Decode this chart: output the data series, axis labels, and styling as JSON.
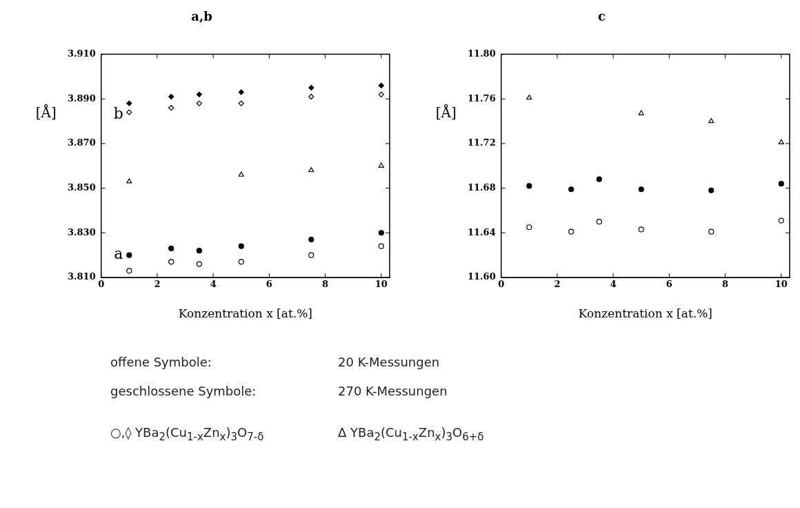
{
  "chart_data": [
    {
      "type": "scatter",
      "title": "a,b",
      "xlabel": "Konzentration x [at.%]",
      "ylabel": "[Å]",
      "x": [
        1,
        2.5,
        3.5,
        5,
        7.5,
        10
      ],
      "series": [
        {
          "color": "#000000",
          "marker": "diamond",
          "values": [
            3.888,
            3.891,
            3.892,
            3.893,
            3.895,
            3.896
          ]
        },
        {
          "color": "#ffffff",
          "marker": "diamond",
          "values": [
            3.884,
            3.886,
            3.888,
            3.888,
            3.891,
            3.892
          ]
        },
        {
          "color": "#ffffff",
          "marker": "triangle",
          "x": [
            1,
            5,
            7.5,
            10
          ],
          "values": [
            3.853,
            3.856,
            3.858,
            3.86
          ]
        },
        {
          "color": "#000000",
          "marker": "circle",
          "values": [
            3.82,
            3.823,
            3.822,
            3.824,
            3.827,
            3.83
          ]
        },
        {
          "color": "#ffffff",
          "marker": "circle",
          "values": [
            3.813,
            3.817,
            3.816,
            3.817,
            3.82,
            3.824
          ]
        }
      ],
      "xlim": [
        0,
        10.3
      ],
      "xticks": [
        0,
        2,
        4,
        6,
        8,
        10
      ],
      "ylim": [
        3.81,
        3.91
      ],
      "yticks": [
        {
          "value": 3.81,
          "label": "3.810"
        },
        {
          "value": 3.83,
          "label": "3.830"
        },
        {
          "value": 3.85,
          "label": "3.850"
        },
        {
          "value": 3.87,
          "label": "3.870"
        },
        {
          "value": 3.89,
          "label": "3.890"
        },
        {
          "value": 3.91,
          "label": "3.910"
        }
      ],
      "annotations": [
        "b",
        "a"
      ],
      "legend": false,
      "grid": false
    },
    {
      "type": "scatter",
      "title": "c",
      "xlabel": "Konzentration x [at.%]",
      "ylabel": "[Å]",
      "x": [
        1,
        2.5,
        3.5,
        5,
        7.5,
        10
      ],
      "series": [
        {
          "color": "#ffffff",
          "marker": "triangle",
          "x": [
            1,
            5,
            7.5,
            10
          ],
          "values": [
            11.761,
            11.747,
            11.74,
            11.721
          ]
        },
        {
          "color": "#000000",
          "marker": "circle",
          "values": [
            11.682,
            11.679,
            11.688,
            11.679,
            11.678,
            11.684
          ]
        },
        {
          "color": "#ffffff",
          "marker": "circle",
          "values": [
            11.645,
            11.641,
            11.65,
            11.643,
            11.641,
            11.651
          ]
        }
      ],
      "xlim": [
        0,
        10.3
      ],
      "xticks": [
        0,
        2,
        4,
        6,
        8,
        10
      ],
      "ylim": [
        11.6,
        11.8
      ],
      "yticks": [
        {
          "value": 11.6,
          "label": "11.60"
        },
        11.64,
        11.68,
        11.72,
        11.76,
        {
          "value": 11.8,
          "label": "11.80"
        }
      ],
      "legend": false,
      "grid": false
    },
    {
      "type": "other",
      "annotations": [
        "offene Symbole:",
        "20 K-Messungen",
        "geschlossene Symbole:",
        "270 K-Messungen",
        "○,◊ YBa$_{2}$(Cu$_{1-x}$Zn$_{x}$)$_{3}$O$_{7-δ}$",
        "Δ   YBa$_{2}$(Cu$_{1-x}$Zn$_{x}$)$_{3}$O$_{6+δ}$"
      ]
    }
  ]
}
